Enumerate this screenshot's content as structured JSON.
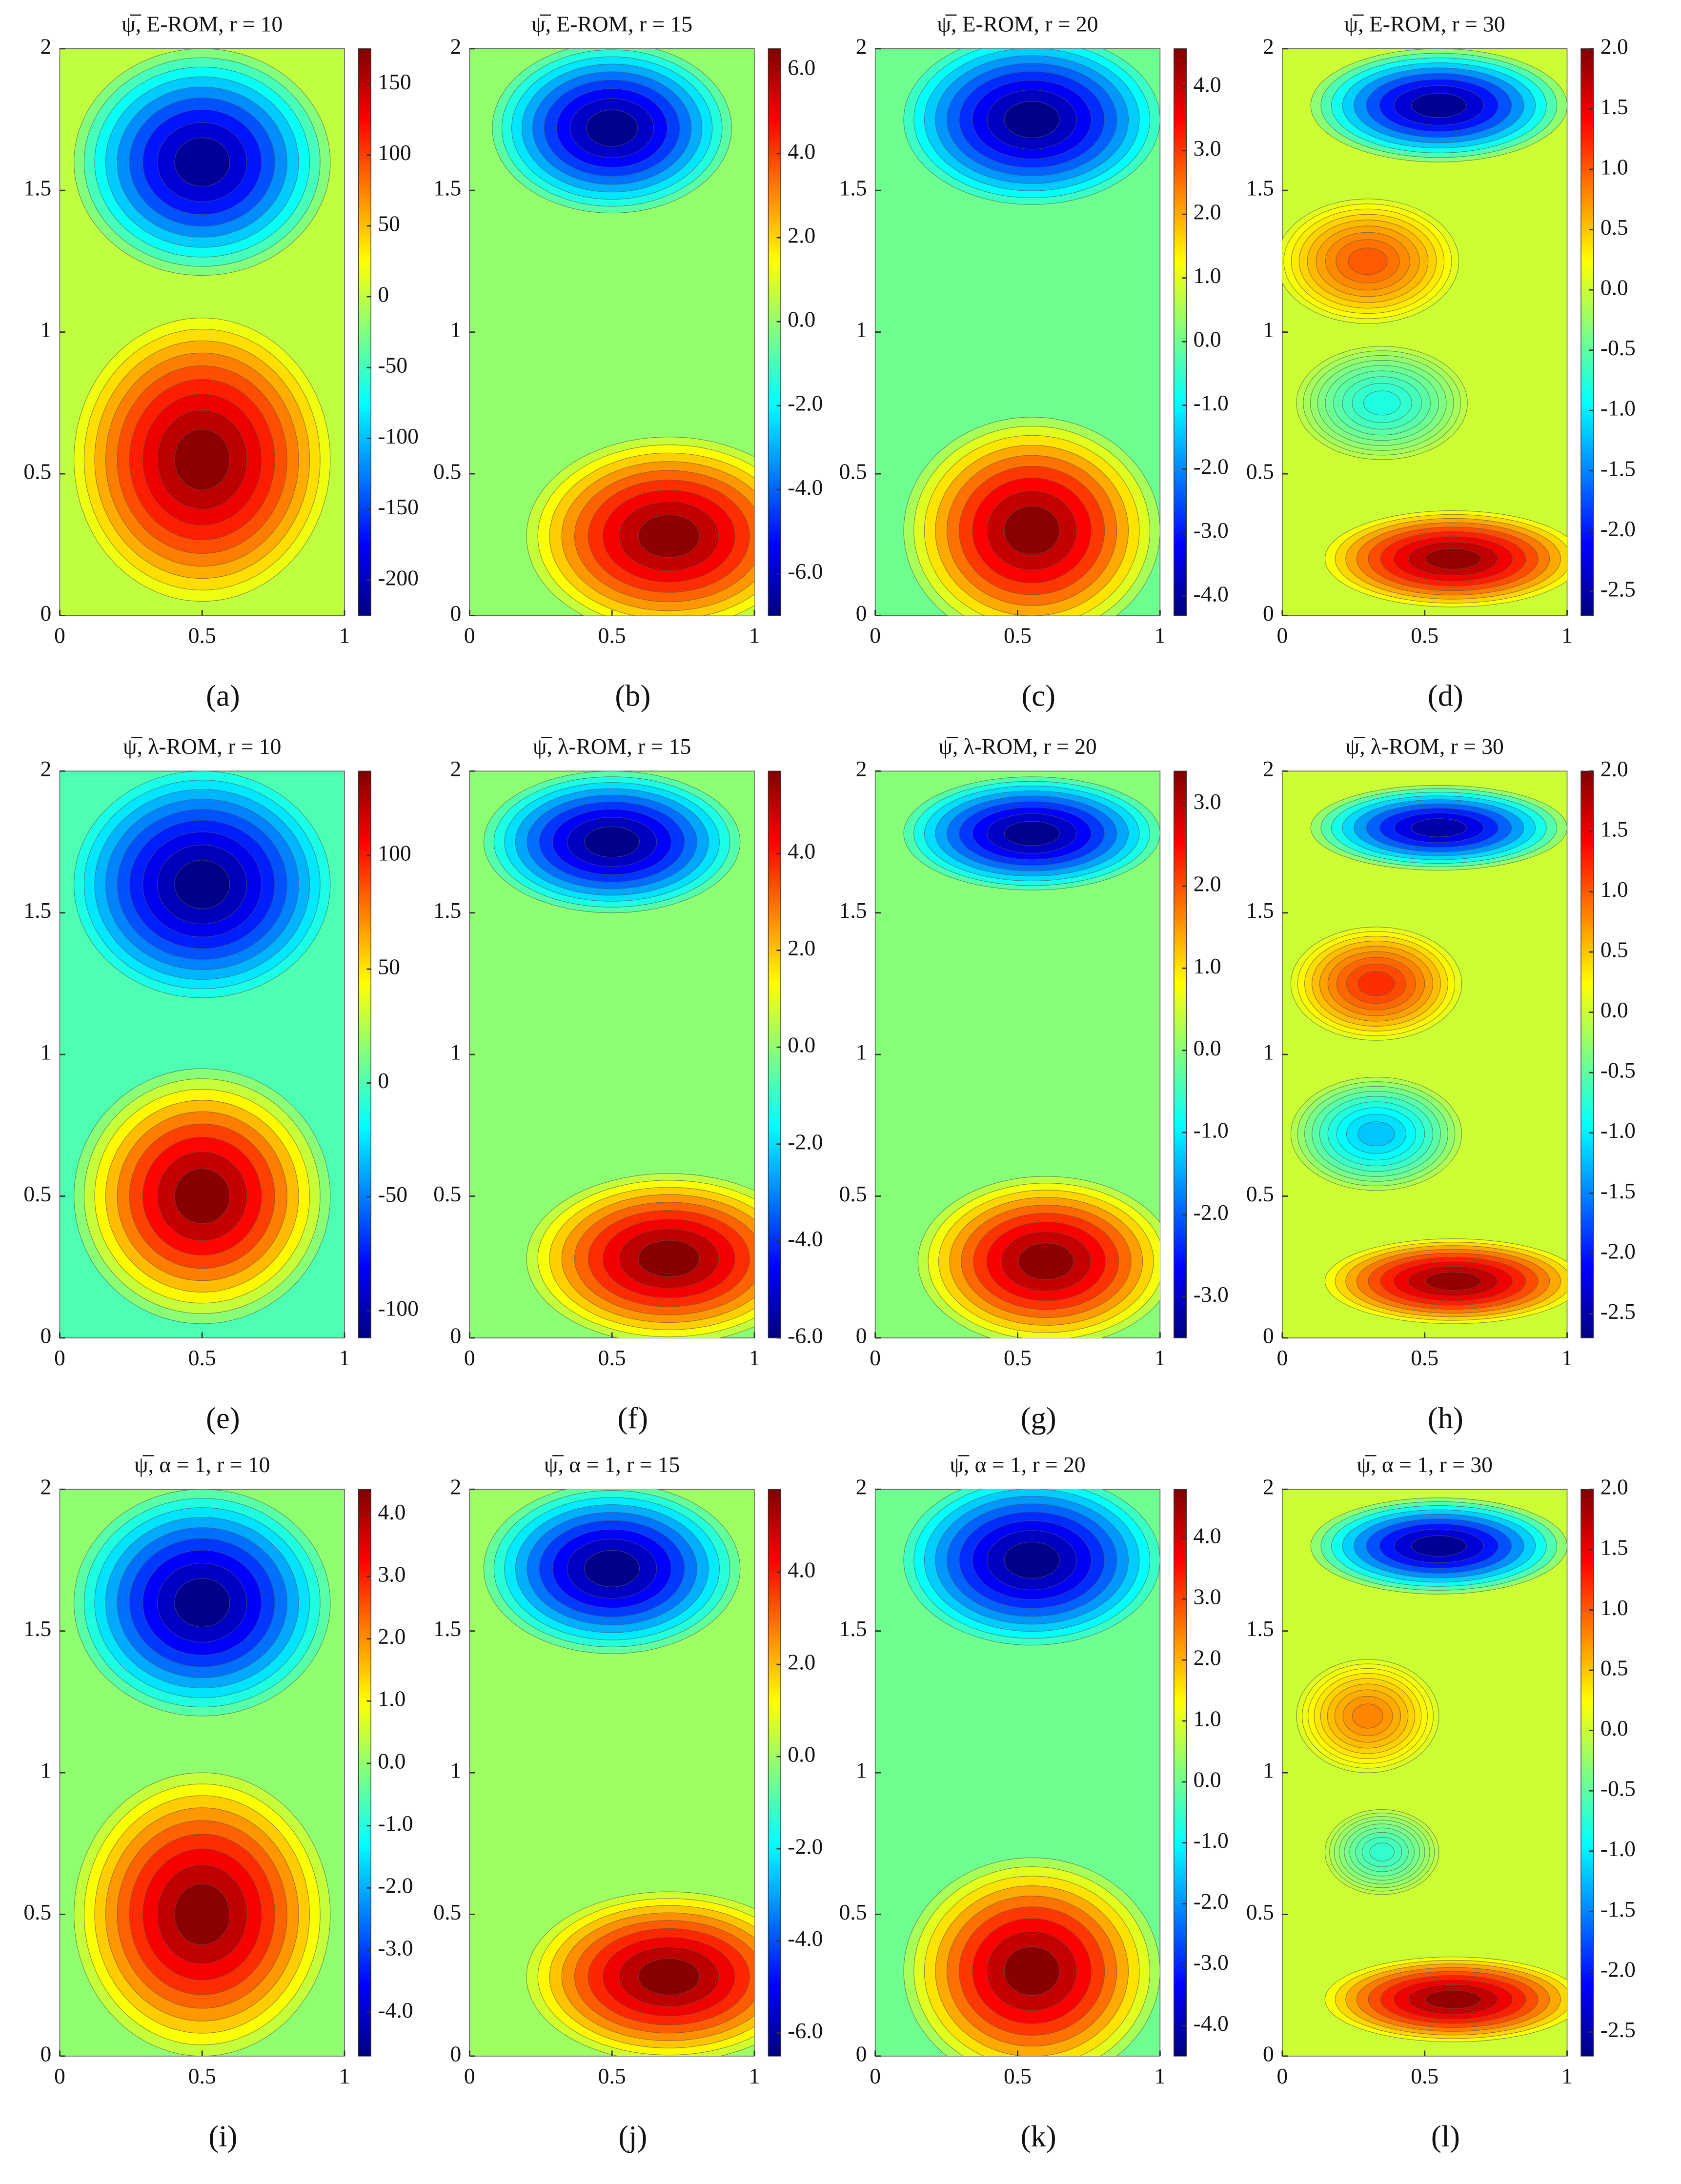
{
  "chart_data": [
    {
      "type": "contour",
      "title": "ψ̅, E-ROM, r = 10",
      "label": "(a)",
      "xlim": [
        0,
        1
      ],
      "ylim": [
        0,
        2
      ],
      "xticks": [
        0,
        0.5,
        1
      ],
      "yticks": [
        0,
        0.5,
        1,
        1.5,
        2
      ],
      "clim": [
        -225,
        175
      ],
      "cticks": [
        -200,
        -150,
        -100,
        -50,
        0,
        50,
        100,
        150
      ],
      "vortices": [
        {
          "x": 0.5,
          "y": 1.6,
          "rx": 0.45,
          "ry": 0.4,
          "value": -215
        },
        {
          "x": 0.5,
          "y": 0.55,
          "rx": 0.45,
          "ry": 0.5,
          "value": 170
        }
      ]
    },
    {
      "type": "contour",
      "title": "ψ̅, E-ROM, r = 15",
      "label": "(b)",
      "xlim": [
        0,
        1
      ],
      "ylim": [
        0,
        2
      ],
      "xticks": [
        0,
        0.5,
        1
      ],
      "yticks": [
        0,
        0.5,
        1,
        1.5,
        2
      ],
      "clim": [
        -7,
        6.5
      ],
      "cticks": [
        {
          "value": -6,
          "label": "-6.0"
        },
        {
          "value": -4,
          "label": "-4.0"
        },
        {
          "value": -2,
          "label": "-2.0"
        },
        {
          "value": 0,
          "label": "0.0"
        },
        {
          "value": 2,
          "label": "2.0"
        },
        {
          "value": 4,
          "label": "4.0"
        },
        {
          "value": 6,
          "label": "6.0"
        }
      ],
      "vortices": [
        {
          "x": 0.5,
          "y": 1.72,
          "rx": 0.42,
          "ry": 0.3,
          "value": -6.8
        },
        {
          "x": 0.7,
          "y": 0.28,
          "rx": 0.5,
          "ry": 0.35,
          "value": 6.3
        }
      ]
    },
    {
      "type": "contour",
      "title": "ψ̅, E-ROM, r = 20",
      "label": "(c)",
      "xlim": [
        0,
        1
      ],
      "ylim": [
        0,
        2
      ],
      "xticks": [
        0,
        0.5,
        1
      ],
      "yticks": [
        0,
        0.5,
        1,
        1.5,
        2
      ],
      "clim": [
        -4.3,
        4.6
      ],
      "cticks": [
        {
          "value": -4,
          "label": "-4.0"
        },
        {
          "value": -3,
          "label": "-3.0"
        },
        {
          "value": -2,
          "label": "-2.0"
        },
        {
          "value": -1,
          "label": "-1.0"
        },
        {
          "value": 0,
          "label": "0.0"
        },
        {
          "value": 1,
          "label": "1.0"
        },
        {
          "value": 2,
          "label": "2.0"
        },
        {
          "value": 3,
          "label": "3.0"
        },
        {
          "value": 4,
          "label": "4.0"
        }
      ],
      "vortices": [
        {
          "x": 0.55,
          "y": 1.75,
          "rx": 0.45,
          "ry": 0.3,
          "value": -4.2
        },
        {
          "x": 0.55,
          "y": 0.3,
          "rx": 0.45,
          "ry": 0.4,
          "value": 4.5
        }
      ]
    },
    {
      "type": "contour",
      "title": "ψ̅, E-ROM, r = 30",
      "label": "(d)",
      "xlim": [
        0,
        1
      ],
      "ylim": [
        0,
        2
      ],
      "xticks": [
        0,
        0.5,
        1
      ],
      "yticks": [
        0,
        0.5,
        1,
        1.5,
        2
      ],
      "clim": [
        -2.7,
        2
      ],
      "cticks": [
        -2.5,
        {
          "value": -2,
          "label": "-2.0"
        },
        -1.5,
        {
          "value": -1,
          "label": "-1.0"
        },
        -0.5,
        {
          "value": 0,
          "label": "0.0"
        },
        0.5,
        {
          "value": 1,
          "label": "1.0"
        },
        1.5,
        {
          "value": 2,
          "label": "2.0"
        }
      ],
      "vortices": [
        {
          "x": 0.55,
          "y": 1.8,
          "rx": 0.45,
          "ry": 0.2,
          "value": -2.6
        },
        {
          "x": 0.3,
          "y": 1.25,
          "rx": 0.32,
          "ry": 0.22,
          "value": 1
        },
        {
          "x": 0.35,
          "y": 0.75,
          "rx": 0.3,
          "ry": 0.2,
          "value": -0.8
        },
        {
          "x": 0.6,
          "y": 0.2,
          "rx": 0.45,
          "ry": 0.17,
          "value": 1.9
        }
      ]
    },
    {
      "type": "contour",
      "title": "ψ̅, λ-ROM, r = 10",
      "label": "(e)",
      "xlim": [
        0,
        1
      ],
      "ylim": [
        0,
        2
      ],
      "xticks": [
        0,
        0.5,
        1
      ],
      "yticks": [
        0,
        0.5,
        1,
        1.5,
        2
      ],
      "clim": [
        -112,
        137
      ],
      "cticks": [
        -100,
        -50,
        0,
        50,
        100
      ],
      "vortices": [
        {
          "x": 0.5,
          "y": 1.6,
          "rx": 0.45,
          "ry": 0.4,
          "value": -110
        },
        {
          "x": 0.5,
          "y": 0.5,
          "rx": 0.45,
          "ry": 0.45,
          "value": 135
        }
      ]
    },
    {
      "type": "contour",
      "title": "ψ̅, λ-ROM, r = 15",
      "label": "(f)",
      "xlim": [
        0,
        1
      ],
      "ylim": [
        0,
        2
      ],
      "xticks": [
        0,
        0.5,
        1
      ],
      "yticks": [
        0,
        0.5,
        1,
        1.5,
        2
      ],
      "clim": [
        -6,
        5.7
      ],
      "cticks": [
        {
          "value": -6,
          "label": "-6.0"
        },
        {
          "value": -4,
          "label": "-4.0"
        },
        {
          "value": -2,
          "label": "-2.0"
        },
        {
          "value": 0,
          "label": "0.0"
        },
        {
          "value": 2,
          "label": "2.0"
        },
        {
          "value": 4,
          "label": "4.0"
        }
      ],
      "vortices": [
        {
          "x": 0.5,
          "y": 1.75,
          "rx": 0.45,
          "ry": 0.25,
          "value": -5.9
        },
        {
          "x": 0.7,
          "y": 0.28,
          "rx": 0.5,
          "ry": 0.3,
          "value": 5.6
        }
      ]
    },
    {
      "type": "contour",
      "title": "ψ̅, λ-ROM, r = 20",
      "label": "(g)",
      "xlim": [
        0,
        1
      ],
      "ylim": [
        0,
        2
      ],
      "xticks": [
        0,
        0.5,
        1
      ],
      "yticks": [
        0,
        0.5,
        1,
        1.5,
        2
      ],
      "clim": [
        -3.5,
        3.4
      ],
      "cticks": [
        {
          "value": -3,
          "label": "-3.0"
        },
        {
          "value": -2,
          "label": "-2.0"
        },
        {
          "value": -1,
          "label": "-1.0"
        },
        {
          "value": 0,
          "label": "0.0"
        },
        {
          "value": 1,
          "label": "1.0"
        },
        {
          "value": 2,
          "label": "2.0"
        },
        {
          "value": 3,
          "label": "3.0"
        }
      ],
      "vortices": [
        {
          "x": 0.55,
          "y": 1.78,
          "rx": 0.45,
          "ry": 0.2,
          "value": -3.4
        },
        {
          "x": 0.6,
          "y": 0.27,
          "rx": 0.45,
          "ry": 0.3,
          "value": 3.3
        }
      ]
    },
    {
      "type": "contour",
      "title": "ψ̅, λ-ROM, r = 30",
      "label": "(h)",
      "xlim": [
        0,
        1
      ],
      "ylim": [
        0,
        2
      ],
      "xticks": [
        0,
        0.5,
        1
      ],
      "yticks": [
        0,
        0.5,
        1,
        1.5,
        2
      ],
      "clim": [
        -2.7,
        2
      ],
      "cticks": [
        -2.5,
        {
          "value": -2,
          "label": "-2.0"
        },
        -1.5,
        {
          "value": -1,
          "label": "-1.0"
        },
        -0.5,
        {
          "value": 0,
          "label": "0.0"
        },
        0.5,
        {
          "value": 1,
          "label": "1.0"
        },
        1.5,
        {
          "value": 2,
          "label": "2.0"
        }
      ],
      "vortices": [
        {
          "x": 0.55,
          "y": 1.8,
          "rx": 0.45,
          "ry": 0.15,
          "value": -2.5
        },
        {
          "x": 0.33,
          "y": 1.25,
          "rx": 0.3,
          "ry": 0.2,
          "value": 1.2
        },
        {
          "x": 0.33,
          "y": 0.72,
          "rx": 0.3,
          "ry": 0.2,
          "value": -1.2
        },
        {
          "x": 0.6,
          "y": 0.2,
          "rx": 0.45,
          "ry": 0.15,
          "value": 1.9
        }
      ]
    },
    {
      "type": "contour",
      "title": "ψ̅, α = 1, r = 10",
      "label": "(i)",
      "xlim": [
        0,
        1
      ],
      "ylim": [
        0,
        2
      ],
      "xticks": [
        0,
        0.5,
        1
      ],
      "yticks": [
        0,
        0.5,
        1,
        1.5,
        2
      ],
      "clim": [
        -4.7,
        4.4
      ],
      "cticks": [
        {
          "value": -4,
          "label": "-4.0"
        },
        {
          "value": -3,
          "label": "-3.0"
        },
        {
          "value": -2,
          "label": "-2.0"
        },
        {
          "value": -1,
          "label": "-1.0"
        },
        {
          "value": 0,
          "label": "0.0"
        },
        {
          "value": 1,
          "label": "1.0"
        },
        {
          "value": 2,
          "label": "2.0"
        },
        {
          "value": 3,
          "label": "3.0"
        },
        {
          "value": 4,
          "label": "4.0"
        }
      ],
      "vortices": [
        {
          "x": 0.5,
          "y": 1.6,
          "rx": 0.45,
          "ry": 0.4,
          "value": -4.6
        },
        {
          "x": 0.5,
          "y": 0.5,
          "rx": 0.45,
          "ry": 0.5,
          "value": 4.3
        }
      ]
    },
    {
      "type": "contour",
      "title": "ψ̅, α = 1, r = 15",
      "label": "(j)",
      "xlim": [
        0,
        1
      ],
      "ylim": [
        0,
        2
      ],
      "xticks": [
        0,
        0.5,
        1
      ],
      "yticks": [
        0,
        0.5,
        1,
        1.5,
        2
      ],
      "clim": [
        -6.5,
        5.8
      ],
      "cticks": [
        {
          "value": -6,
          "label": "-6.0"
        },
        {
          "value": -4,
          "label": "-4.0"
        },
        {
          "value": -2,
          "label": "-2.0"
        },
        {
          "value": 0,
          "label": "0.0"
        },
        {
          "value": 2,
          "label": "2.0"
        },
        {
          "value": 4,
          "label": "4.0"
        }
      ],
      "vortices": [
        {
          "x": 0.5,
          "y": 1.72,
          "rx": 0.45,
          "ry": 0.3,
          "value": -6.4
        },
        {
          "x": 0.7,
          "y": 0.28,
          "rx": 0.5,
          "ry": 0.3,
          "value": 5.7
        }
      ]
    },
    {
      "type": "contour",
      "title": "ψ̅, α = 1, r = 20",
      "label": "(k)",
      "xlim": [
        0,
        1
      ],
      "ylim": [
        0,
        2
      ],
      "xticks": [
        0,
        0.5,
        1
      ],
      "yticks": [
        0,
        0.5,
        1,
        1.5,
        2
      ],
      "clim": [
        -4.5,
        4.8
      ],
      "cticks": [
        {
          "value": -4,
          "label": "-4.0"
        },
        {
          "value": -3,
          "label": "-3.0"
        },
        {
          "value": -2,
          "label": "-2.0"
        },
        {
          "value": -1,
          "label": "-1.0"
        },
        {
          "value": 0,
          "label": "0.0"
        },
        {
          "value": 1,
          "label": "1.0"
        },
        {
          "value": 2,
          "label": "2.0"
        },
        {
          "value": 3,
          "label": "3.0"
        },
        {
          "value": 4,
          "label": "4.0"
        }
      ],
      "vortices": [
        {
          "x": 0.55,
          "y": 1.75,
          "rx": 0.45,
          "ry": 0.3,
          "value": -4.4
        },
        {
          "x": 0.55,
          "y": 0.3,
          "rx": 0.45,
          "ry": 0.4,
          "value": 4.7
        }
      ]
    },
    {
      "type": "contour",
      "title": "ψ̅, α = 1, r = 30",
      "label": "(l)",
      "xlim": [
        0,
        1
      ],
      "ylim": [
        0,
        2
      ],
      "xticks": [
        0,
        0.5,
        1
      ],
      "yticks": [
        0,
        0.5,
        1,
        1.5,
        2
      ],
      "clim": [
        -2.7,
        2
      ],
      "cticks": [
        -2.5,
        {
          "value": -2,
          "label": "-2.0"
        },
        -1.5,
        {
          "value": -1,
          "label": "-1.0"
        },
        -0.5,
        {
          "value": 0,
          "label": "0.0"
        },
        0.5,
        {
          "value": 1,
          "label": "1.0"
        },
        1.5,
        {
          "value": 2,
          "label": "2.0"
        }
      ],
      "vortices": [
        {
          "x": 0.55,
          "y": 1.8,
          "rx": 0.45,
          "ry": 0.17,
          "value": -2.6
        },
        {
          "x": 0.3,
          "y": 1.2,
          "rx": 0.25,
          "ry": 0.2,
          "value": 0.8
        },
        {
          "x": 0.35,
          "y": 0.72,
          "rx": 0.2,
          "ry": 0.15,
          "value": -0.7
        },
        {
          "x": 0.6,
          "y": 0.2,
          "rx": 0.45,
          "ry": 0.15,
          "value": 1.9
        }
      ]
    }
  ]
}
